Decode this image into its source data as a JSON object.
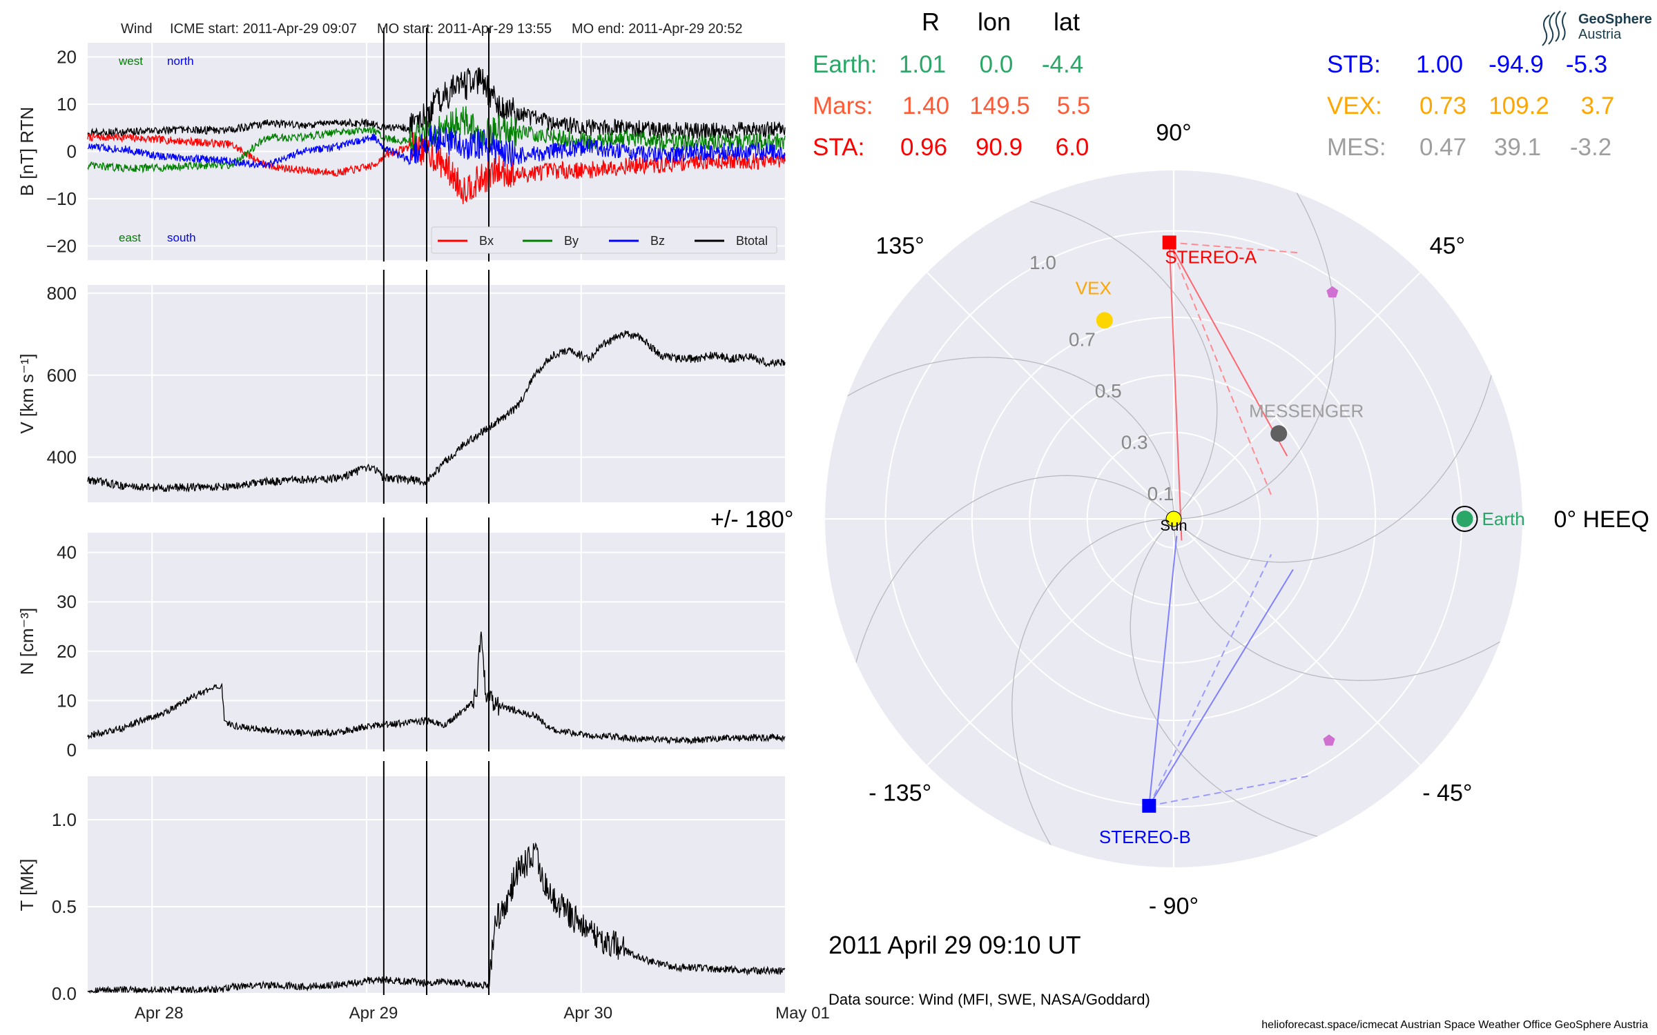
{
  "header": {
    "spacecraft": "Wind",
    "icme_start": "ICME start: 2011-Apr-29 09:07",
    "mo_start": "MO start: 2011-Apr-29 13:55",
    "mo_end": "MO end: 2011-Apr-29 20:52"
  },
  "timeseries": {
    "x_ticks": [
      "Apr 28",
      "Apr 29",
      "Apr 30",
      "May 01"
    ],
    "event_times_h": [
      33.12,
      37.92,
      44.87
    ],
    "colors": {
      "Bx": "#ff0000",
      "By": "#008000",
      "Bz": "#0000ff",
      "Btotal": "#000000"
    },
    "panels": [
      {
        "id": "B",
        "ylabel": "B [nT] RTN",
        "ylim": [
          -23,
          23
        ],
        "yticks": [
          20,
          10,
          0,
          -10,
          -20
        ],
        "ytick_labels": [
          "20",
          "10",
          "0",
          "−10",
          "−20"
        ],
        "annotations": [
          {
            "text": "west",
            "color": "#008000"
          },
          {
            "text": "north",
            "color": "#0000ff"
          },
          {
            "text": "east",
            "color": "#008000"
          },
          {
            "text": "south",
            "color": "#0000ff"
          }
        ],
        "legend": [
          "Bx",
          "By",
          "Bz",
          "Btotal"
        ]
      },
      {
        "id": "V",
        "ylabel": "V [km s⁻¹]",
        "ylim": [
          290,
          820
        ],
        "yticks": [
          800,
          600,
          400
        ],
        "ytick_labels": [
          "800",
          "600",
          "400"
        ]
      },
      {
        "id": "N",
        "ylabel": "N [cm⁻³]",
        "ylim": [
          0,
          44
        ],
        "yticks": [
          40,
          30,
          20,
          10,
          0
        ],
        "ytick_labels": [
          "40",
          "30",
          "20",
          "10",
          "0"
        ]
      },
      {
        "id": "T",
        "ylabel": "T [MK]",
        "ylim": [
          0,
          1.25
        ],
        "yticks": [
          1.0,
          0.5,
          0.0
        ],
        "ytick_labels": [
          "1.0",
          "0.5",
          "0.0"
        ]
      }
    ]
  },
  "chart_data": [
    {
      "type": "line",
      "title": "Wind",
      "xlabel": "",
      "ylabel": "B [nT] RTN",
      "ylim": [
        -23,
        23
      ],
      "x_hours": [
        0,
        4,
        8,
        12,
        16,
        20,
        24,
        28,
        32,
        33.1,
        36,
        38,
        40,
        42,
        44,
        46,
        48,
        52,
        56,
        60,
        64,
        68,
        72,
        76
      ],
      "series": [
        {
          "name": "Bx",
          "values": [
            3,
            3,
            2.5,
            2,
            1.5,
            -3,
            -4,
            -4.5,
            -3,
            -1,
            1,
            0,
            -3,
            -8,
            -6,
            -4,
            -5,
            -4,
            -4,
            -3,
            -3,
            -2,
            -2,
            -2
          ]
        },
        {
          "name": "By",
          "values": [
            -3,
            -3.5,
            -3.5,
            -3,
            -3,
            3,
            3,
            4,
            4.5,
            3,
            2,
            4,
            5,
            7,
            3,
            5,
            4,
            3,
            2,
            3,
            2,
            2,
            2,
            2
          ]
        },
        {
          "name": "Bz",
          "values": [
            1,
            0.5,
            -1,
            -1.5,
            -2,
            -3,
            0,
            1,
            3,
            1,
            -2,
            3,
            2,
            1,
            2,
            0,
            -1,
            0,
            1,
            0,
            -1,
            0,
            0,
            0
          ]
        },
        {
          "name": "Btotal",
          "values": [
            4,
            4,
            4.5,
            4.5,
            4.5,
            6,
            5.5,
            6,
            6,
            5,
            5,
            8,
            12,
            14,
            15,
            10,
            8,
            6,
            5,
            5,
            4.5,
            4.5,
            4.5,
            4.5
          ]
        }
      ]
    },
    {
      "type": "line",
      "ylabel": "V [km s⁻¹]",
      "ylim": [
        290,
        820
      ],
      "x_hours": [
        0,
        4,
        8,
        12,
        16,
        20,
        24,
        28,
        30,
        32,
        33.1,
        36,
        37.9,
        40,
        42,
        44,
        46,
        48,
        50,
        52,
        54,
        56,
        58,
        60,
        62,
        64,
        66,
        68,
        70,
        72,
        74,
        76
      ],
      "series": [
        {
          "values": [
            345,
            330,
            325,
            327,
            328,
            340,
            345,
            348,
            365,
            375,
            350,
            345,
            340,
            390,
            430,
            460,
            490,
            520,
            600,
            650,
            660,
            640,
            680,
            700,
            690,
            650,
            640,
            640,
            650,
            640,
            645,
            630
          ]
        }
      ]
    },
    {
      "type": "line",
      "ylabel": "N [cm⁻³]",
      "ylim": [
        0,
        44
      ],
      "x_hours": [
        0,
        2,
        4,
        6,
        8,
        10,
        12,
        15,
        15.3,
        16,
        20,
        24,
        28,
        32,
        36,
        38,
        40,
        42,
        43.5,
        44,
        44.5,
        45,
        46,
        48,
        50,
        52,
        54,
        56,
        60,
        64,
        68,
        72,
        76
      ],
      "series": [
        {
          "values": [
            3,
            3.5,
            4.5,
            6,
            7,
            9,
            11,
            13,
            6,
            5,
            4,
            3.5,
            3.5,
            5,
            5.5,
            6,
            5,
            8,
            11,
            25,
            12,
            10,
            9,
            8,
            7,
            4,
            3.5,
            3,
            2.5,
            2,
            2,
            2.5,
            2.5
          ]
        }
      ]
    },
    {
      "type": "line",
      "ylabel": "T [MK]",
      "ylim": [
        0,
        1.25
      ],
      "x_hours": [
        0,
        4,
        8,
        12,
        15,
        16,
        20,
        24,
        28,
        32,
        36,
        38,
        40,
        42,
        44,
        44.9,
        45.5,
        47,
        48,
        49,
        50,
        51,
        52,
        53,
        54,
        56,
        58,
        60,
        62,
        64,
        66,
        68,
        70,
        72,
        74,
        76
      ],
      "series": [
        {
          "values": [
            0.02,
            0.02,
            0.02,
            0.02,
            0.02,
            0.04,
            0.05,
            0.04,
            0.05,
            0.08,
            0.07,
            0.06,
            0.07,
            0.06,
            0.05,
            0.05,
            0.4,
            0.55,
            0.7,
            0.75,
            0.8,
            0.65,
            0.55,
            0.5,
            0.45,
            0.35,
            0.3,
            0.25,
            0.2,
            0.17,
            0.15,
            0.15,
            0.14,
            0.14,
            0.13,
            0.13
          ]
        }
      ]
    },
    {
      "type": "scatter",
      "title": "2011 April 29  09:10 UT",
      "polar": true,
      "r_ticks": [
        0.1,
        0.3,
        0.5,
        0.7,
        1.0
      ],
      "angle_labels": [
        {
          "deg": 0,
          "text": "0° HEEQ"
        },
        {
          "deg": 45,
          "text": "45°"
        },
        {
          "deg": 90,
          "text": "90°"
        },
        {
          "deg": 135,
          "text": "135°"
        },
        {
          "deg": 180,
          "text": "+/- 180°"
        },
        {
          "deg": -135,
          "text": "- 135°"
        },
        {
          "deg": -90,
          "text": "- 90°"
        },
        {
          "deg": -45,
          "text": "- 45°"
        }
      ],
      "points": [
        {
          "name": "Sun",
          "r": 0.0,
          "lon": 0.0,
          "color": "#ffff00",
          "marker": "circle",
          "label_color": "#000000"
        },
        {
          "name": "Earth",
          "r": 1.01,
          "lon": 0.0,
          "color": "#2aa666",
          "marker": "circle-ring",
          "label_color": "#2aa666"
        },
        {
          "name": "STEREO-A",
          "r": 0.96,
          "lon": 90.9,
          "color": "#ff0000",
          "marker": "square",
          "label_color": "#ff0000"
        },
        {
          "name": "STEREO-B",
          "r": 1.0,
          "lon": -94.9,
          "color": "#0000ff",
          "marker": "square",
          "label_color": "#0000ff"
        },
        {
          "name": "VEX",
          "r": 0.73,
          "lon": 109.2,
          "color": "#ffd500",
          "marker": "circle",
          "label_color": "#ffa500"
        },
        {
          "name": "MESSENGER",
          "r": 0.47,
          "lon": 39.1,
          "color": "#606060",
          "marker": "circle",
          "label_color": "#9e9e9e"
        }
      ],
      "extra_markers": [
        {
          "r": 0.96,
          "lon": 55,
          "color": "#d070d0",
          "marker": "pentagon"
        },
        {
          "r": 0.94,
          "lon": -55,
          "color": "#d070d0",
          "marker": "pentagon"
        }
      ],
      "fov_lines": [
        {
          "from": "STEREO-A",
          "to_r": 0.45,
          "to_lon": 29,
          "color": "#ff6670",
          "dashed": false
        },
        {
          "from": "STEREO-A",
          "to_r": 0.08,
          "to_lon": -70,
          "color": "#ff6670",
          "dashed": false
        },
        {
          "from": "STEREO-A",
          "to_r": 0.35,
          "to_lon": 12,
          "color": "#ff8a90",
          "dashed": true
        },
        {
          "from": "STEREO-A",
          "to_r": 1.02,
          "to_lon": 65,
          "color": "#ff8a90",
          "dashed": true
        },
        {
          "from": "STEREO-B",
          "to_r": 0.45,
          "to_lon": -23,
          "color": "#8080ff",
          "dashed": false
        },
        {
          "from": "STEREO-B",
          "to_r": 0.06,
          "to_lon": -80,
          "color": "#8080ff",
          "dashed": false
        },
        {
          "from": "STEREO-B",
          "to_r": 0.36,
          "to_lon": -20,
          "color": "#9a9aff",
          "dashed": true
        },
        {
          "from": "STEREO-B",
          "to_r": 1.01,
          "to_lon": -62,
          "color": "#9a9aff",
          "dashed": true
        }
      ]
    }
  ],
  "position_table": {
    "headers": [
      "R",
      "lon",
      "lat"
    ],
    "left_rows": [
      {
        "label": "Earth:",
        "r": "1.01",
        "lon": "0.0",
        "lat": "-4.4",
        "color": "#2aa666"
      },
      {
        "label": "Mars:",
        "r": "1.40",
        "lon": "149.5",
        "lat": "5.5",
        "color": "#ff5a36"
      },
      {
        "label": "STA:",
        "r": "0.96",
        "lon": "90.9",
        "lat": "6.0",
        "color": "#ff0000"
      }
    ],
    "right_rows": [
      {
        "label": "STB:",
        "r": "1.00",
        "lon": "-94.9",
        "lat": "-5.3",
        "color": "#0000ff"
      },
      {
        "label": "VEX:",
        "r": "0.73",
        "lon": "109.2",
        "lat": "3.7",
        "color": "#ffa500"
      },
      {
        "label": "MES:",
        "r": "0.47",
        "lon": "39.1",
        "lat": "-3.2",
        "color": "#9e9e9e"
      }
    ]
  },
  "footer": {
    "date": "2011 April 29  09:10 UT",
    "data_source": "Data source: Wind (MFI, SWE, NASA/Goddard)",
    "credits": "helioforecast.space/icmecat   Austrian Space Weather Office   GeoSphere Austria"
  },
  "logo": {
    "line1": "GeoSphere",
    "line2": "Austria"
  }
}
